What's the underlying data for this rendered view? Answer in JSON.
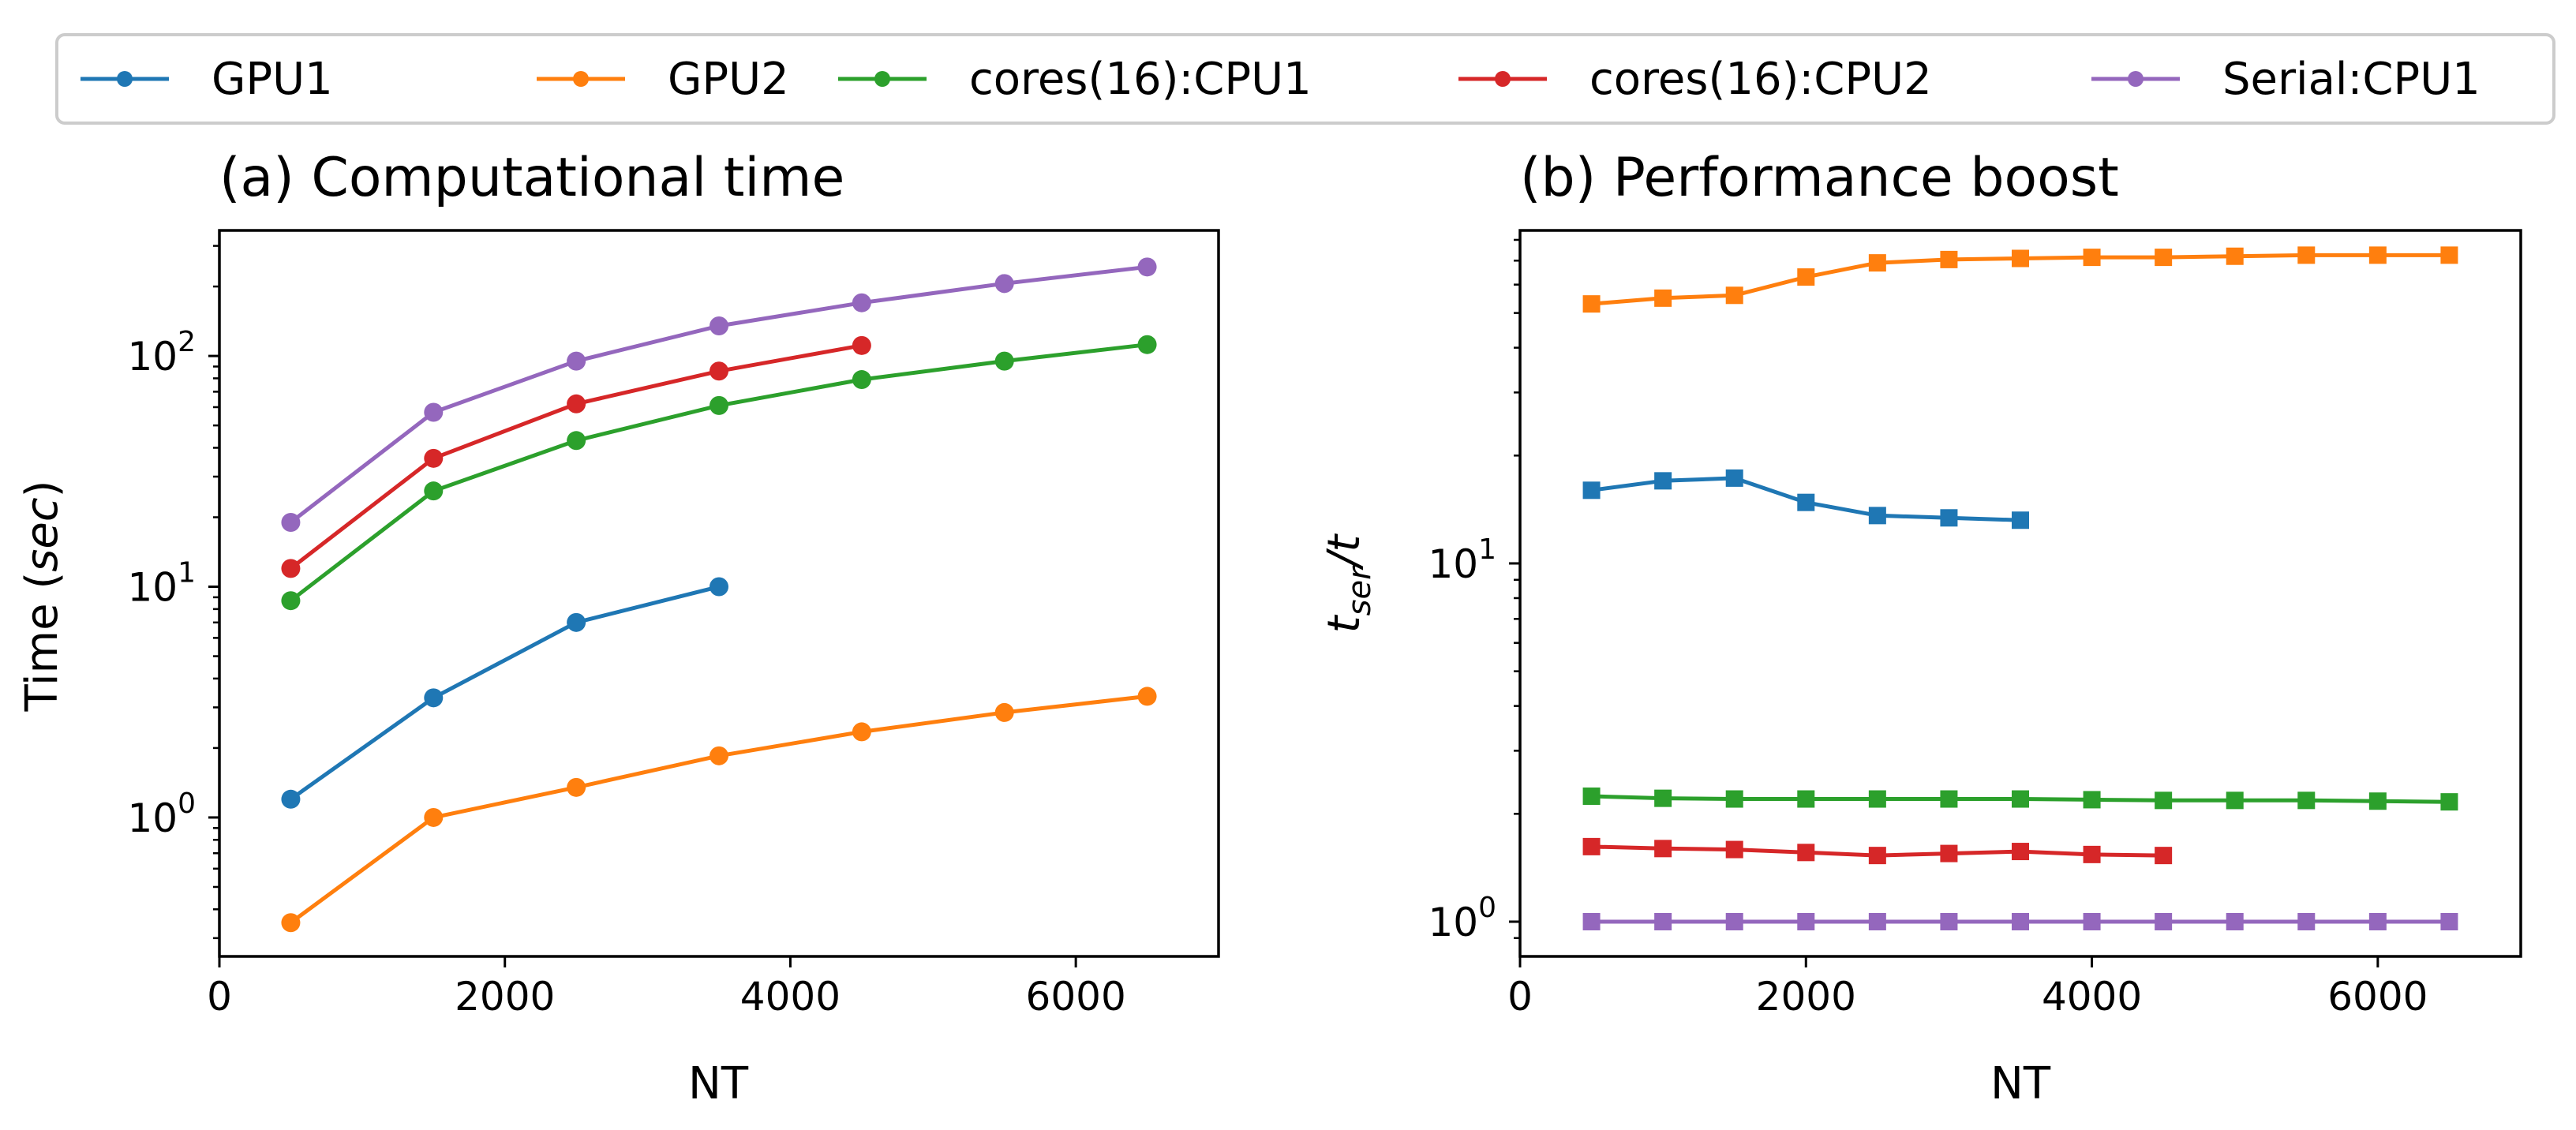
{
  "legend": [
    {
      "name": "GPU1",
      "color": "#1f77b4"
    },
    {
      "name": "GPU2",
      "color": "#ff7f0e"
    },
    {
      "name": "cores(16):CPU1",
      "color": "#2ca02c"
    },
    {
      "name": "cores(16):CPU2",
      "color": "#d62728"
    },
    {
      "name": "Serial:CPU1",
      "color": "#9467bd"
    }
  ],
  "chart_data": [
    {
      "type": "line",
      "title": "(a) Computational time",
      "xlabel": "NT",
      "ylabel": "Time (sec)",
      "ylabel_parts": {
        "prefix": "Time (",
        "italic": "sec",
        "suffix": ")"
      },
      "xlim": [
        0,
        7000
      ],
      "ylim": [
        0.25,
        350
      ],
      "yscale": "log",
      "marker": "circle",
      "xticks": [
        0,
        2000,
        4000,
        6000
      ],
      "xtick_labels": [
        "0",
        "2000",
        "4000",
        "6000"
      ],
      "yticks": [
        {
          "value": 1,
          "base": "10",
          "exp": "0"
        },
        {
          "value": 10,
          "base": "10",
          "exp": "1"
        },
        {
          "value": 100,
          "base": "10",
          "exp": "2"
        }
      ],
      "series": [
        {
          "name": "GPU1",
          "color": "#1f77b4",
          "x": [
            500,
            1500,
            2500,
            3500
          ],
          "values": [
            1.2,
            3.3,
            7.0,
            10.0
          ]
        },
        {
          "name": "GPU2",
          "color": "#ff7f0e",
          "x": [
            500,
            1500,
            2500,
            3500,
            4500,
            5500,
            6500
          ],
          "values": [
            0.35,
            1.0,
            1.35,
            1.85,
            2.35,
            2.85,
            3.35
          ]
        },
        {
          "name": "cores(16):CPU1",
          "color": "#2ca02c",
          "x": [
            500,
            1500,
            2500,
            3500,
            4500,
            5500,
            6500
          ],
          "values": [
            8.7,
            26,
            43,
            61,
            79,
            95,
            112
          ]
        },
        {
          "name": "cores(16):CPU2",
          "color": "#d62728",
          "x": [
            500,
            1500,
            2500,
            3500,
            4500
          ],
          "values": [
            12,
            36,
            62,
            86,
            111
          ]
        },
        {
          "name": "Serial:CPU1",
          "color": "#9467bd",
          "x": [
            500,
            1500,
            2500,
            3500,
            4500,
            5500,
            6500
          ],
          "values": [
            19,
            57,
            95,
            135,
            170,
            206,
            243
          ]
        }
      ]
    },
    {
      "type": "line",
      "title": "(b) Performance boost",
      "xlabel": "NT",
      "ylabel": "t_ser/t",
      "ylabel_parts": {
        "base": "t",
        "sub": "ser",
        "suffix": "/t"
      },
      "xlim": [
        0,
        7000
      ],
      "ylim": [
        0.8,
        85
      ],
      "yscale": "log",
      "marker": "square",
      "xticks": [
        0,
        2000,
        4000,
        6000
      ],
      "xtick_labels": [
        "0",
        "2000",
        "4000",
        "6000"
      ],
      "yticks": [
        {
          "value": 1,
          "base": "10",
          "exp": "0"
        },
        {
          "value": 10,
          "base": "10",
          "exp": "1"
        }
      ],
      "series": [
        {
          "name": "GPU1",
          "color": "#1f77b4",
          "x": [
            500,
            1000,
            1500,
            2000,
            2500,
            3000,
            3500
          ],
          "values": [
            16,
            17,
            17.3,
            14.8,
            13.6,
            13.4,
            13.2
          ]
        },
        {
          "name": "GPU2",
          "color": "#ff7f0e",
          "x": [
            500,
            1000,
            1500,
            2000,
            2500,
            3000,
            3500,
            4000,
            4500,
            5000,
            5500,
            6000,
            6500
          ],
          "values": [
            53,
            55,
            56,
            63,
            69,
            70.5,
            71,
            71.5,
            71.5,
            72,
            72.5,
            72.5,
            72.5
          ]
        },
        {
          "name": "cores(16):CPU1",
          "color": "#2ca02c",
          "x": [
            500,
            1000,
            1500,
            2000,
            2500,
            3000,
            3500,
            4000,
            4500,
            5000,
            5500,
            6000,
            6500
          ],
          "values": [
            2.24,
            2.21,
            2.2,
            2.2,
            2.2,
            2.2,
            2.2,
            2.19,
            2.18,
            2.18,
            2.18,
            2.17,
            2.16
          ]
        },
        {
          "name": "cores(16):CPU2",
          "color": "#d62728",
          "x": [
            500,
            1000,
            1500,
            2000,
            2500,
            3000,
            3500,
            4000,
            4500
          ],
          "values": [
            1.62,
            1.6,
            1.59,
            1.56,
            1.53,
            1.55,
            1.57,
            1.54,
            1.53
          ]
        },
        {
          "name": "Serial:CPU1",
          "color": "#9467bd",
          "x": [
            500,
            1000,
            1500,
            2000,
            2500,
            3000,
            3500,
            4000,
            4500,
            5000,
            5500,
            6000,
            6500
          ],
          "values": [
            1,
            1,
            1,
            1,
            1,
            1,
            1,
            1,
            1,
            1,
            1,
            1,
            1
          ]
        }
      ]
    }
  ]
}
